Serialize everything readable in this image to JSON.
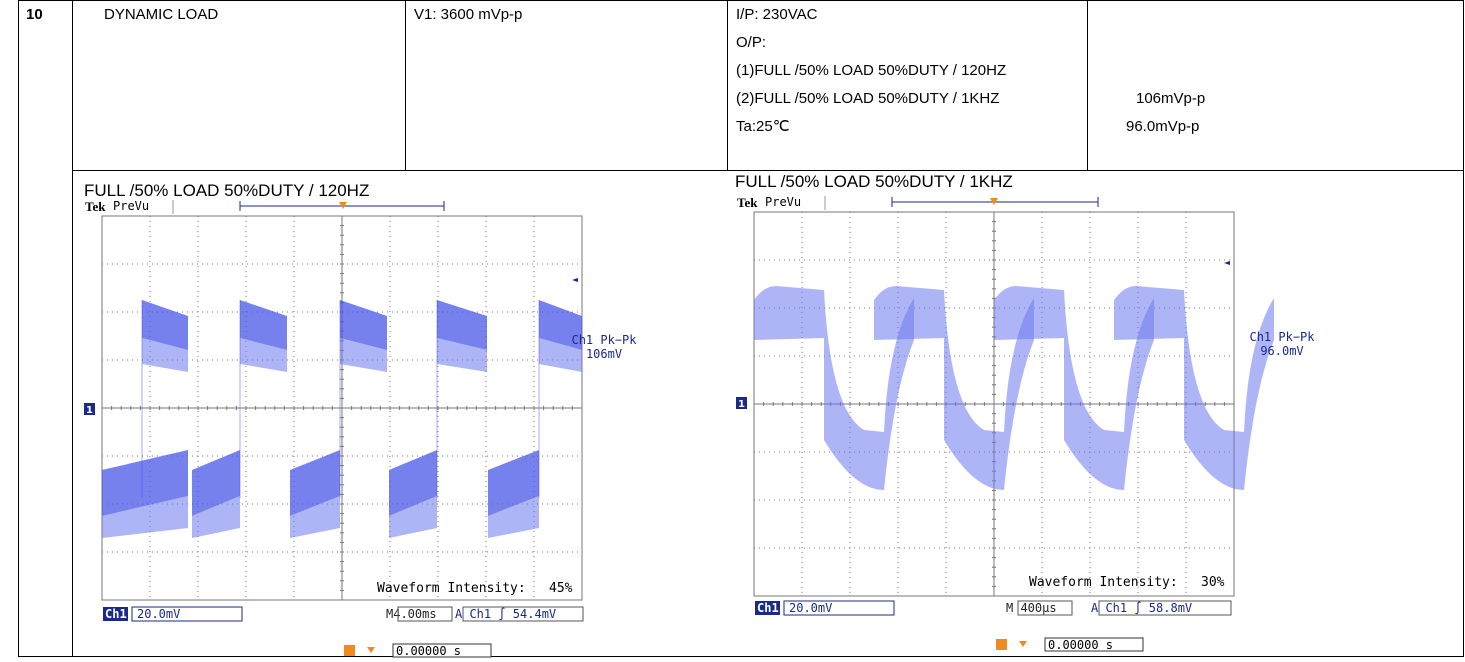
{
  "row": {
    "number": "10",
    "test_item": "DYNAMIC LOAD",
    "spec": "V1: 3600 mVp-p",
    "conditions": [
      "I/P: 230VAC",
      "O/P:",
      "(1)FULL /50% LOAD 50%DUTY / 120HZ",
      "(2)FULL /50% LOAD 50%DUTY / 1KHZ",
      "Ta:25℃"
    ],
    "results": [
      "106mVp-p",
      "96.0mVp-p"
    ]
  },
  "scopes": [
    {
      "title": "FULL /50% LOAD 50%DUTY / 120HZ",
      "brand": "Tek",
      "mode": "PreVu",
      "trigger_marker": "T",
      "channel_marker": "1",
      "meas_label": "Ch1 Pk−Pk",
      "meas_value": "106mV",
      "intensity_text": "Waveform Intensity:",
      "intensity_value": "45%",
      "ch_label": "Ch1",
      "ch_scale": "20.0mV",
      "timebase": "M4.00ms",
      "trigger_info": "A  Ch1  ∫  54.4mV",
      "position": "0.00000 s"
    },
    {
      "title": "FULL /50% LOAD 50%DUTY / 1KHZ",
      "brand": "Tek",
      "mode": "PreVu",
      "trigger_marker": "T",
      "channel_marker": "1",
      "meas_label": "Ch1 Pk−Pk",
      "meas_value": "96.0mV",
      "intensity_text": "Waveform Intensity:",
      "intensity_value": "30%",
      "ch_label": "Ch1",
      "ch_scale": "20.0mV",
      "timebase": "M 400μs",
      "trigger_info": "A  Ch1  ∫  58.8mV",
      "position": "0.00000 s"
    }
  ],
  "colors": {
    "trace": "#4a57e8",
    "trigger": "#f08a1c",
    "channel_marker": "#1a2a8a"
  }
}
